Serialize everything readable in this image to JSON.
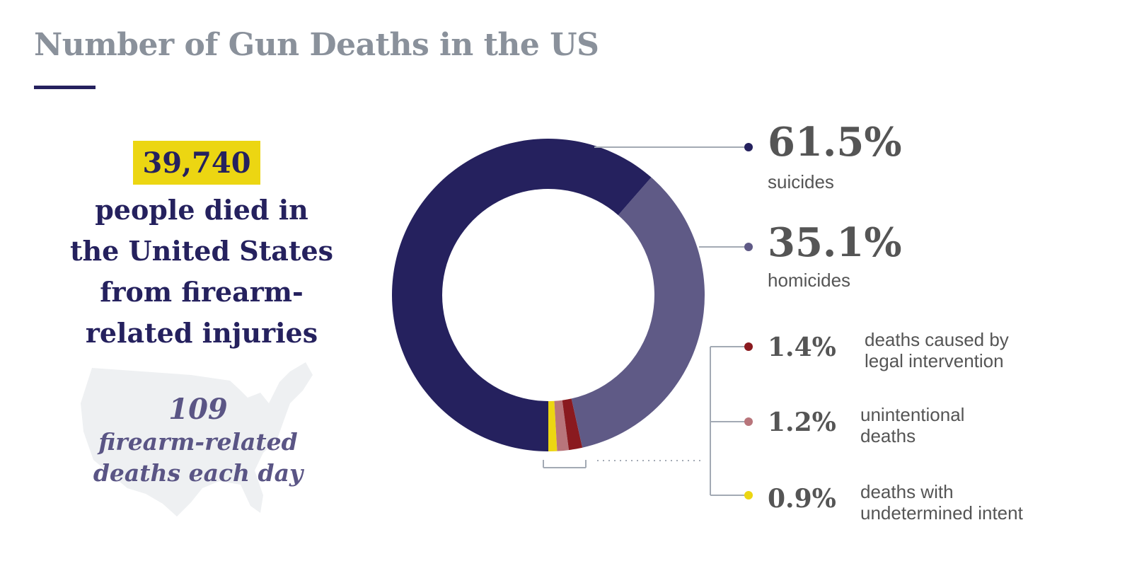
{
  "title": "Number of Gun Deaths in the US",
  "total_deaths": "39,740",
  "lead_lines": [
    "people died in",
    "the United States",
    "from firearm-",
    "related injuries"
  ],
  "daily_number": "109",
  "daily_lines": [
    "firearm-related",
    "deaths each day"
  ],
  "colors": {
    "title": "#8a919b",
    "navy": "#25215e",
    "highlight": "#ecd612",
    "leader": "#a3aab4"
  },
  "chart_data": {
    "type": "pie",
    "donut": true,
    "unit": "%",
    "series": [
      {
        "value_label": "61.5%",
        "value": 61.5,
        "label": "suicides",
        "color": "#25215e"
      },
      {
        "value_label": "35.1%",
        "value": 35.1,
        "label": "homicides",
        "color": "#5f5a86"
      },
      {
        "value_label": "1.4%",
        "value": 1.4,
        "label": "deaths caused by legal intervention",
        "label_lines": [
          "deaths caused by",
          "legal intervention"
        ],
        "color": "#8a1a1f"
      },
      {
        "value_label": "1.2%",
        "value": 1.2,
        "label": "unintentional deaths",
        "label_lines": [
          "unintentional",
          "deaths"
        ],
        "color": "#b8757b"
      },
      {
        "value_label": "0.9%",
        "value": 0.9,
        "label": "deaths with undetermined intent",
        "label_lines": [
          "deaths with",
          "undetermined intent"
        ],
        "color": "#ecd612"
      }
    ]
  }
}
